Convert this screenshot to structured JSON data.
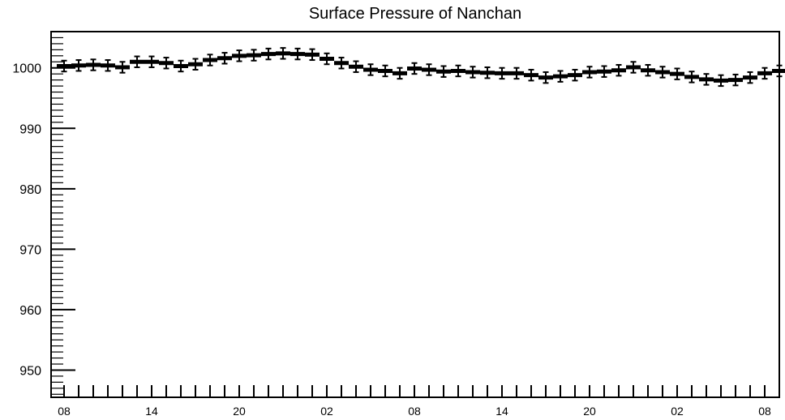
{
  "chart_data": {
    "type": "line",
    "title": "Surface Pressure of Nanchan",
    "xlabel": "",
    "ylabel": "",
    "ylim": [
      945.5,
      1006
    ],
    "y_ticks": [
      "950",
      "960",
      "970",
      "980",
      "990",
      "1000"
    ],
    "x_ticks": [
      "08",
      "14",
      "20",
      "02",
      "08",
      "14",
      "20",
      "02",
      "08"
    ],
    "hours_per_point": 1,
    "error_bar": 0.9,
    "grid": false,
    "legend": "none",
    "series": [
      {
        "color": "#000000",
        "values": [
          1000.3,
          1000.4,
          1000.5,
          1000.4,
          1000.1,
          1001.0,
          1001.0,
          1000.8,
          1000.3,
          1000.6,
          1001.3,
          1001.6,
          1002.0,
          1002.1,
          1002.3,
          1002.4,
          1002.3,
          1002.2,
          1001.5,
          1000.8,
          1000.2,
          999.7,
          999.5,
          999.1,
          999.9,
          999.7,
          999.4,
          999.5,
          999.3,
          999.2,
          999.1,
          999.1,
          998.8,
          998.4,
          998.6,
          998.8,
          999.3,
          999.4,
          999.6,
          1000.1,
          999.6,
          999.3,
          999.0,
          998.5,
          998.1,
          997.9,
          998.0,
          998.4,
          999.1,
          999.5
        ]
      }
    ]
  }
}
